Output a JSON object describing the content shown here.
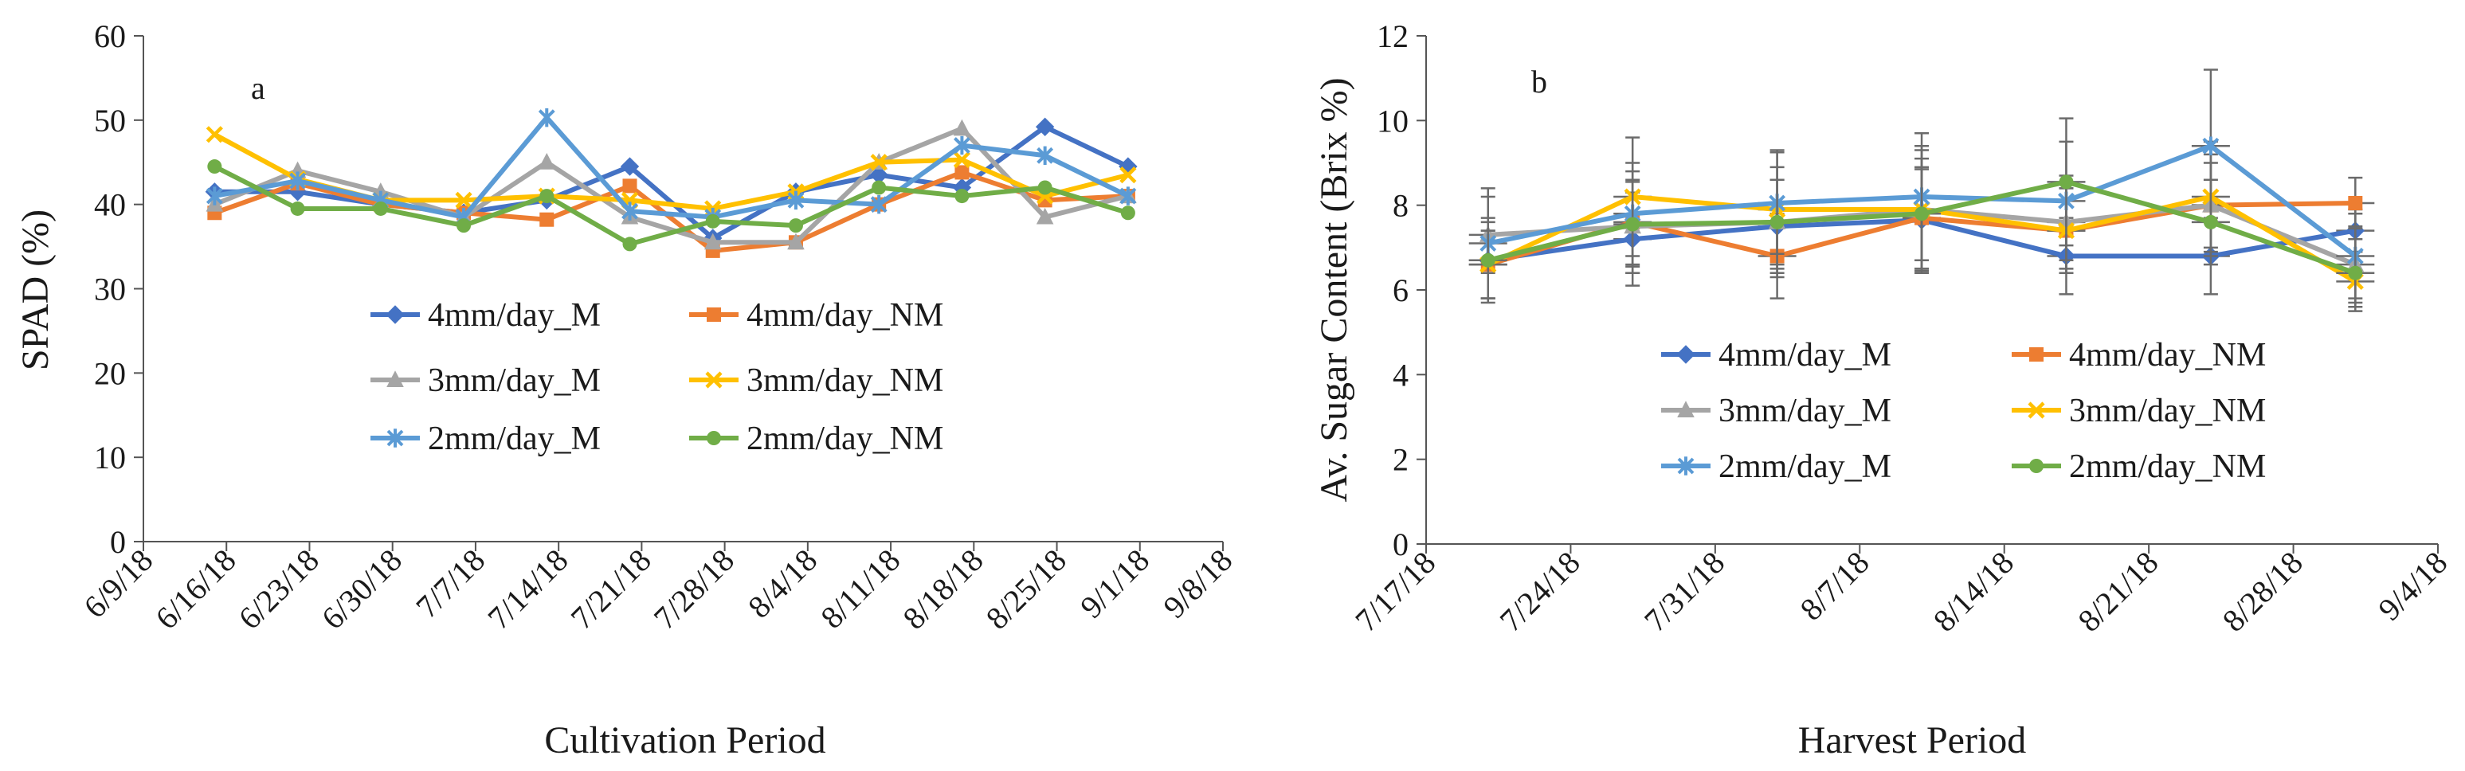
{
  "chart_data": [
    {
      "type": "line",
      "panel_label": "a",
      "title": "",
      "xlabel": "Cultivation Period",
      "ylabel": "SPAD (%)",
      "ylim": [
        0,
        60
      ],
      "yticks": [
        0,
        10,
        20,
        30,
        40,
        50,
        60
      ],
      "xticks": [
        "6/9/18",
        "6/16/18",
        "6/23/18",
        "6/30/18",
        "7/7/18",
        "7/14/18",
        "7/21/18",
        "7/28/18",
        "8/4/18",
        "8/11/18",
        "8/18/18",
        "8/25/18",
        "9/1/18",
        "9/8/18"
      ],
      "grid": false,
      "legend_position": "center",
      "x": [
        "6/15/18",
        "6/22/18",
        "6/29/18",
        "7/6/18",
        "7/13/18",
        "7/20/18",
        "7/27/18",
        "8/3/18",
        "8/10/18",
        "8/17/18",
        "8/24/18",
        "8/31/18"
      ],
      "series": [
        {
          "name": "4mm/day_M",
          "color": "#4472C4",
          "marker": "diamond",
          "values": [
            41.5,
            41.5,
            40,
            39,
            40.5,
            44.5,
            36,
            41.5,
            43.5,
            42,
            49.2,
            44.5
          ]
        },
        {
          "name": "4mm/day_NM",
          "color": "#ED7D31",
          "marker": "square",
          "values": [
            39,
            42.5,
            40,
            39,
            38.2,
            42.2,
            34.5,
            35.5,
            40,
            43.8,
            40.5,
            41
          ]
        },
        {
          "name": "3mm/day_M",
          "color": "#A5A5A5",
          "marker": "triangle",
          "values": [
            40,
            44,
            41.5,
            38.5,
            45,
            38.5,
            35.5,
            35.5,
            45,
            49,
            38.5,
            41
          ]
        },
        {
          "name": "3mm/day_NM",
          "color": "#FFC000",
          "marker": "x",
          "values": [
            48.3,
            43,
            40.5,
            40.5,
            41,
            40.5,
            39.5,
            41.5,
            45,
            45.3,
            41,
            43.5
          ]
        },
        {
          "name": "2mm/day_M",
          "color": "#5B9BD5",
          "marker": "star",
          "values": [
            41,
            42.8,
            40.5,
            38.5,
            50.3,
            39.2,
            38.5,
            40.5,
            40,
            47,
            45.8,
            41
          ]
        },
        {
          "name": "2mm/day_NM",
          "color": "#70AD47",
          "marker": "circle",
          "values": [
            44.5,
            39.5,
            39.5,
            37.5,
            41,
            35.3,
            38,
            37.5,
            42,
            41,
            42,
            39
          ]
        }
      ]
    },
    {
      "type": "line",
      "panel_label": "b",
      "title": "",
      "xlabel": "Harvest Period",
      "ylabel": "Av. Sugar Content (Brix %)",
      "ylim": [
        0,
        12
      ],
      "yticks": [
        0,
        2,
        4,
        6,
        8,
        10,
        12
      ],
      "yticklabels": [
        "0",
        "2",
        "4",
        "6",
        "8",
        "10",
        "12"
      ],
      "xticks": [
        "7/17/18",
        "7/24/18",
        "7/31/18",
        "8/7/18",
        "8/14/18",
        "8/21/18",
        "8/28/18",
        "9/4/18"
      ],
      "grid": false,
      "legend_position": "lower-center",
      "x": [
        "7/20/18",
        "7/27/18",
        "8/3/18",
        "8/10/18",
        "8/17/18",
        "8/24/18",
        "8/31/18"
      ],
      "error_bars": true,
      "series": [
        {
          "name": "4mm/day_M",
          "color": "#4472C4",
          "marker": "diamond",
          "values": [
            6.7,
            7.2,
            7.5,
            7.65,
            6.8,
            6.8,
            7.4
          ],
          "errors": [
            1.0,
            1.1,
            1.1,
            1.2,
            0.9,
            0.9,
            0.5
          ]
        },
        {
          "name": "4mm/day_NM",
          "color": "#ED7D31",
          "marker": "square",
          "values": [
            6.6,
            7.6,
            6.8,
            7.7,
            7.4,
            8.0,
            8.05
          ],
          "errors": [
            0.8,
            1.2,
            1.0,
            1.2,
            1.0,
            1.0,
            0.6
          ]
        },
        {
          "name": "3mm/day_M",
          "color": "#A5A5A5",
          "marker": "triangle",
          "values": [
            7.3,
            7.5,
            7.6,
            7.9,
            7.6,
            8.0,
            6.6
          ],
          "errors": [
            0.9,
            1.1,
            1.3,
            1.4,
            1.1,
            1.2,
            0.9
          ]
        },
        {
          "name": "3mm/day_NM",
          "color": "#FFC000",
          "marker": "x",
          "values": [
            6.6,
            8.2,
            7.9,
            7.9,
            7.4,
            8.2,
            6.2
          ],
          "errors": [
            0.8,
            1.4,
            1.4,
            1.5,
            1.0,
            1.3,
            0.7
          ]
        },
        {
          "name": "2mm/day_M",
          "color": "#5B9BD5",
          "marker": "star",
          "values": [
            7.1,
            7.8,
            8.05,
            8.2,
            8.1,
            9.4,
            6.8
          ],
          "errors": [
            1.3,
            1.2,
            1.2,
            1.5,
            1.4,
            1.8,
            1.0
          ]
        },
        {
          "name": "2mm/day_NM",
          "color": "#70AD47",
          "marker": "circle",
          "values": [
            6.7,
            7.55,
            7.6,
            7.8,
            8.55,
            7.6,
            6.4
          ],
          "errors": [
            0.9,
            1.0,
            1.0,
            1.3,
            1.5,
            1.0,
            0.8
          ]
        }
      ]
    }
  ]
}
